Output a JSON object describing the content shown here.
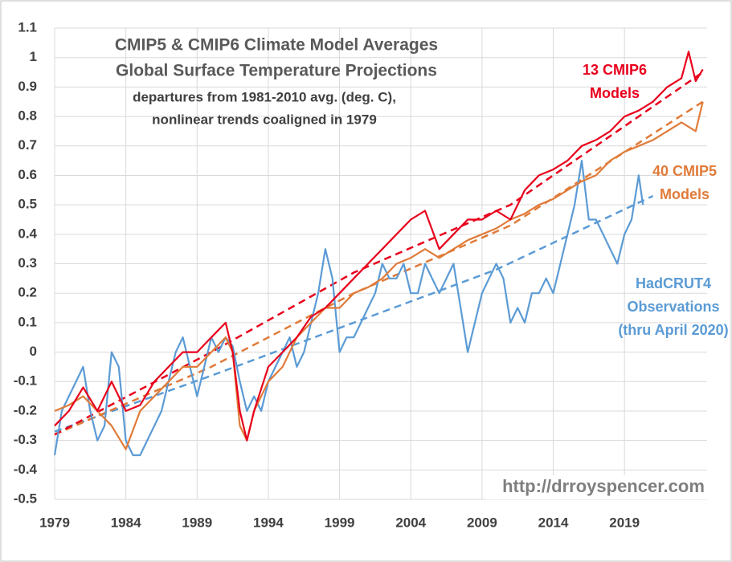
{
  "chart_data": {
    "type": "line",
    "title_lines": [
      "CMIP5 & CMIP6 Climate Model Averages",
      "Global Surface Temperature Projections"
    ],
    "subtitle_lines": [
      "departures from 1981-2010 avg. (deg. C),",
      "nonlinear trends coaligned in 1979"
    ],
    "watermark": "http://drroyspencer.com",
    "xlim": [
      1979,
      2024.8
    ],
    "xticks": [
      1979,
      1984,
      1989,
      1994,
      1999,
      2004,
      2009,
      2014,
      2019
    ],
    "ylim": [
      -0.5,
      1.1
    ],
    "yticks": [
      1.1,
      1,
      0.9,
      0.8,
      0.7,
      0.6,
      0.5,
      0.4,
      0.3,
      0.2,
      0.1,
      0,
      -0.1,
      -0.2,
      -0.3,
      -0.4,
      -0.5
    ],
    "grid": true,
    "series": [
      {
        "label_lines": [
          "HadCRUT4",
          "Observations",
          "(thru April 2020)"
        ],
        "color": "#5b9bd5",
        "x": [
          1979,
          1979.5,
          1980,
          1980.5,
          1981,
          1981.5,
          1982,
          1982.5,
          1983,
          1983.5,
          1984,
          1984.5,
          1985,
          1985.5,
          1986,
          1986.5,
          1987,
          1987.5,
          1988,
          1988.5,
          1989,
          1989.5,
          1990,
          1990.5,
          1991,
          1991.5,
          1992,
          1992.5,
          1993,
          1993.5,
          1994,
          1994.5,
          1995,
          1995.5,
          1996,
          1996.5,
          1997,
          1997.5,
          1998,
          1998.5,
          1999,
          1999.5,
          2000,
          2000.5,
          2001,
          2001.5,
          2002,
          2002.5,
          2003,
          2003.5,
          2004,
          2004.5,
          2005,
          2005.5,
          2006,
          2006.5,
          2007,
          2007.5,
          2008,
          2008.5,
          2009,
          2009.5,
          2010,
          2010.5,
          2011,
          2011.5,
          2012,
          2012.5,
          2013,
          2013.5,
          2014,
          2014.5,
          2015,
          2015.5,
          2016,
          2016.5,
          2017,
          2017.5,
          2018,
          2018.5,
          2019,
          2019.5,
          2020,
          2020.3
        ],
        "values": [
          -0.35,
          -0.2,
          -0.15,
          -0.1,
          -0.05,
          -0.2,
          -0.3,
          -0.25,
          0.0,
          -0.05,
          -0.3,
          -0.35,
          -0.35,
          -0.3,
          -0.25,
          -0.2,
          -0.1,
          0.0,
          0.05,
          -0.05,
          -0.15,
          -0.05,
          0.05,
          0.0,
          0.05,
          0.02,
          -0.1,
          -0.2,
          -0.15,
          -0.2,
          -0.1,
          -0.05,
          0.0,
          0.05,
          -0.05,
          0.0,
          0.1,
          0.2,
          0.35,
          0.25,
          0.0,
          0.05,
          0.05,
          0.1,
          0.15,
          0.2,
          0.3,
          0.25,
          0.25,
          0.3,
          0.2,
          0.2,
          0.3,
          0.25,
          0.2,
          0.25,
          0.3,
          0.15,
          0.0,
          0.1,
          0.2,
          0.25,
          0.3,
          0.25,
          0.1,
          0.15,
          0.1,
          0.2,
          0.2,
          0.25,
          0.2,
          0.3,
          0.4,
          0.5,
          0.65,
          0.45,
          0.45,
          0.4,
          0.35,
          0.3,
          0.4,
          0.45,
          0.6,
          0.5
        ]
      },
      {
        "label_lines": [
          "40 CMIP5",
          "Models"
        ],
        "color": "#e07b39",
        "x": [
          1979,
          1980,
          1981,
          1982,
          1983,
          1984,
          1985,
          1986,
          1987,
          1988,
          1989,
          1990,
          1991,
          1991.5,
          1992,
          1992.5,
          1993,
          1994,
          1995,
          1996,
          1997,
          1998,
          1999,
          2000,
          2001,
          2002,
          2003,
          2004,
          2005,
          2006,
          2007,
          2008,
          2009,
          2010,
          2011,
          2012,
          2013,
          2014,
          2015,
          2016,
          2017,
          2018,
          2019,
          2020,
          2021,
          2022,
          2023,
          2024,
          2024.5
        ],
        "values": [
          -0.2,
          -0.18,
          -0.15,
          -0.2,
          -0.25,
          -0.33,
          -0.2,
          -0.15,
          -0.1,
          -0.05,
          -0.05,
          0.0,
          0.05,
          0.0,
          -0.25,
          -0.3,
          -0.2,
          -0.1,
          -0.05,
          0.05,
          0.1,
          0.15,
          0.15,
          0.2,
          0.22,
          0.25,
          0.3,
          0.32,
          0.35,
          0.32,
          0.35,
          0.38,
          0.4,
          0.42,
          0.45,
          0.47,
          0.5,
          0.52,
          0.55,
          0.58,
          0.6,
          0.65,
          0.68,
          0.7,
          0.72,
          0.75,
          0.78,
          0.75,
          0.85
        ]
      },
      {
        "label_lines": [
          "13 CMIP6",
          "Models"
        ],
        "color": "#e8001c",
        "x": [
          1979,
          1980,
          1981,
          1982,
          1983,
          1984,
          1985,
          1986,
          1987,
          1988,
          1989,
          1990,
          1991,
          1991.5,
          1992,
          1992.5,
          1993,
          1994,
          1995,
          1996,
          1997,
          1998,
          1999,
          2000,
          2001,
          2002,
          2003,
          2004,
          2005,
          2006,
          2007,
          2008,
          2009,
          2010,
          2011,
          2012,
          2013,
          2014,
          2015,
          2016,
          2017,
          2018,
          2019,
          2020,
          2021,
          2022,
          2023,
          2023.5,
          2024,
          2024.5
        ],
        "values": [
          -0.25,
          -0.2,
          -0.12,
          -0.2,
          -0.1,
          -0.2,
          -0.18,
          -0.1,
          -0.05,
          0.0,
          0.0,
          0.05,
          0.1,
          0.0,
          -0.2,
          -0.3,
          -0.2,
          -0.05,
          0.0,
          0.05,
          0.12,
          0.15,
          0.2,
          0.25,
          0.3,
          0.35,
          0.4,
          0.45,
          0.48,
          0.35,
          0.4,
          0.45,
          0.45,
          0.48,
          0.45,
          0.55,
          0.6,
          0.62,
          0.65,
          0.7,
          0.72,
          0.75,
          0.8,
          0.82,
          0.85,
          0.9,
          0.93,
          1.02,
          0.92,
          0.96
        ]
      }
    ],
    "trend_lines": [
      {
        "color": "#5b9bd5",
        "x": [
          1979,
          1990,
          2000,
          2010,
          2021
        ],
        "values": [
          -0.27,
          -0.08,
          0.1,
          0.28,
          0.53
        ]
      },
      {
        "color": "#e07b39",
        "x": [
          1979,
          1990,
          2000,
          2011,
          2024.5
        ],
        "values": [
          -0.28,
          -0.05,
          0.2,
          0.43,
          0.85
        ]
      },
      {
        "color": "#e8001c",
        "x": [
          1979,
          1990,
          2000,
          2011,
          2024.5
        ],
        "values": [
          -0.28,
          0.0,
          0.27,
          0.5,
          0.95
        ]
      }
    ]
  }
}
